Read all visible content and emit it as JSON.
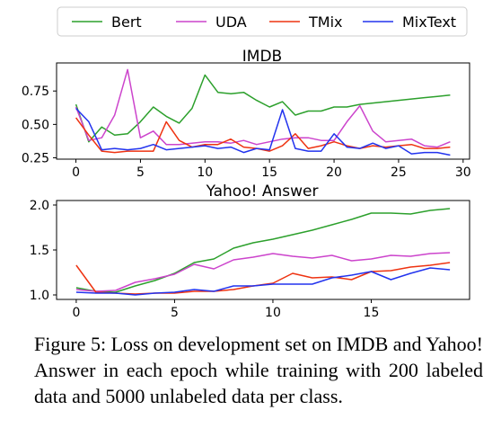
{
  "colors": {
    "Bert": "#2ca02c",
    "UDA": "#cc44cc",
    "TMix": "#ee3311",
    "MixText": "#2233ee"
  },
  "legend": {
    "placement": "top",
    "entries": [
      {
        "name": "Bert",
        "color": "#2ca02c"
      },
      {
        "name": "UDA",
        "color": "#cc44cc"
      },
      {
        "name": "TMix",
        "color": "#ee3311"
      },
      {
        "name": "MixText",
        "color": "#2233ee"
      }
    ]
  },
  "chart_data": [
    {
      "type": "line",
      "title": "IMDB",
      "xlabel": "",
      "ylabel": "",
      "xlim": [
        -1.5,
        30.5
      ],
      "ylim": [
        0.24,
        0.96
      ],
      "xticks": [
        0,
        5,
        10,
        15,
        20,
        25,
        30
      ],
      "yticks": [
        0.25,
        0.5,
        0.75
      ],
      "ytick_labels": [
        "0.25",
        "0.50",
        "0.75"
      ],
      "grid": false,
      "x": [
        0,
        1,
        2,
        3,
        4,
        5,
        6,
        7,
        8,
        9,
        10,
        11,
        12,
        13,
        14,
        15,
        16,
        17,
        18,
        19,
        20,
        21,
        22,
        23,
        24,
        25,
        26,
        27,
        28,
        29
      ],
      "series": [
        {
          "name": "Bert",
          "color": "#2ca02c",
          "values": [
            0.65,
            0.37,
            0.48,
            0.42,
            0.43,
            0.52,
            0.63,
            0.56,
            0.51,
            0.62,
            0.87,
            0.74,
            0.73,
            0.74,
            0.68,
            0.63,
            0.67,
            0.57,
            0.6,
            0.6,
            0.63,
            0.63,
            0.65,
            0.66,
            0.67,
            0.68,
            0.69,
            0.7,
            0.71,
            0.72
          ]
        },
        {
          "name": "UDA",
          "color": "#cc44cc",
          "values": [
            0.63,
            0.38,
            0.4,
            0.57,
            0.91,
            0.4,
            0.45,
            0.35,
            0.35,
            0.36,
            0.37,
            0.37,
            0.36,
            0.38,
            0.35,
            0.37,
            0.39,
            0.4,
            0.4,
            0.38,
            0.38,
            0.52,
            0.64,
            0.45,
            0.37,
            0.38,
            0.39,
            0.34,
            0.33,
            0.37
          ]
        },
        {
          "name": "TMix",
          "color": "#ee3311",
          "values": [
            0.55,
            0.42,
            0.3,
            0.29,
            0.3,
            0.3,
            0.3,
            0.52,
            0.38,
            0.33,
            0.35,
            0.35,
            0.39,
            0.33,
            0.32,
            0.3,
            0.34,
            0.43,
            0.32,
            0.34,
            0.37,
            0.34,
            0.32,
            0.34,
            0.33,
            0.34,
            0.35,
            0.32,
            0.32,
            0.33
          ]
        },
        {
          "name": "MixText",
          "color": "#2233ee",
          "values": [
            0.62,
            0.52,
            0.31,
            0.32,
            0.31,
            0.32,
            0.35,
            0.31,
            0.32,
            0.33,
            0.34,
            0.32,
            0.33,
            0.29,
            0.32,
            0.31,
            0.61,
            0.32,
            0.3,
            0.3,
            0.43,
            0.33,
            0.32,
            0.36,
            0.32,
            0.34,
            0.28,
            0.29,
            0.29,
            0.27
          ]
        }
      ]
    },
    {
      "type": "line",
      "title": "Yahoo! Answer",
      "xlabel": "",
      "ylabel": "",
      "xlim": [
        -1,
        20
      ],
      "ylim": [
        0.95,
        2.05
      ],
      "xticks": [
        0,
        5,
        10,
        15
      ],
      "yticks": [
        1.0,
        1.5,
        2.0
      ],
      "ytick_labels": [
        "1.0",
        "1.5",
        "2.0"
      ],
      "grid": false,
      "x": [
        0,
        1,
        2,
        3,
        4,
        5,
        6,
        7,
        8,
        9,
        10,
        11,
        12,
        13,
        14,
        15,
        16,
        17,
        18,
        19
      ],
      "series": [
        {
          "name": "Bert",
          "color": "#2ca02c",
          "values": [
            1.08,
            1.04,
            1.03,
            1.1,
            1.16,
            1.24,
            1.36,
            1.4,
            1.52,
            1.58,
            1.62,
            1.67,
            1.72,
            1.78,
            1.84,
            1.91,
            1.91,
            1.9,
            1.94,
            1.96
          ]
        },
        {
          "name": "UDA",
          "color": "#cc44cc",
          "values": [
            1.06,
            1.04,
            1.05,
            1.14,
            1.18,
            1.23,
            1.34,
            1.29,
            1.39,
            1.42,
            1.46,
            1.43,
            1.41,
            1.44,
            1.38,
            1.4,
            1.44,
            1.43,
            1.46,
            1.47
          ]
        },
        {
          "name": "TMix",
          "color": "#ee3311",
          "values": [
            1.33,
            1.03,
            1.02,
            1.01,
            1.02,
            1.02,
            1.04,
            1.04,
            1.06,
            1.1,
            1.13,
            1.24,
            1.19,
            1.2,
            1.17,
            1.26,
            1.27,
            1.31,
            1.33,
            1.36
          ]
        },
        {
          "name": "MixText",
          "color": "#2233ee",
          "values": [
            1.03,
            1.02,
            1.02,
            1.0,
            1.02,
            1.03,
            1.06,
            1.04,
            1.1,
            1.1,
            1.12,
            1.12,
            1.12,
            1.19,
            1.22,
            1.26,
            1.17,
            1.24,
            1.3,
            1.28
          ]
        }
      ]
    }
  ],
  "caption": "Figure 5: Loss on development set on IMDB and Yahoo! Answer in each epoch while training with 200 labeled data and 5000 unlabeled data per class."
}
